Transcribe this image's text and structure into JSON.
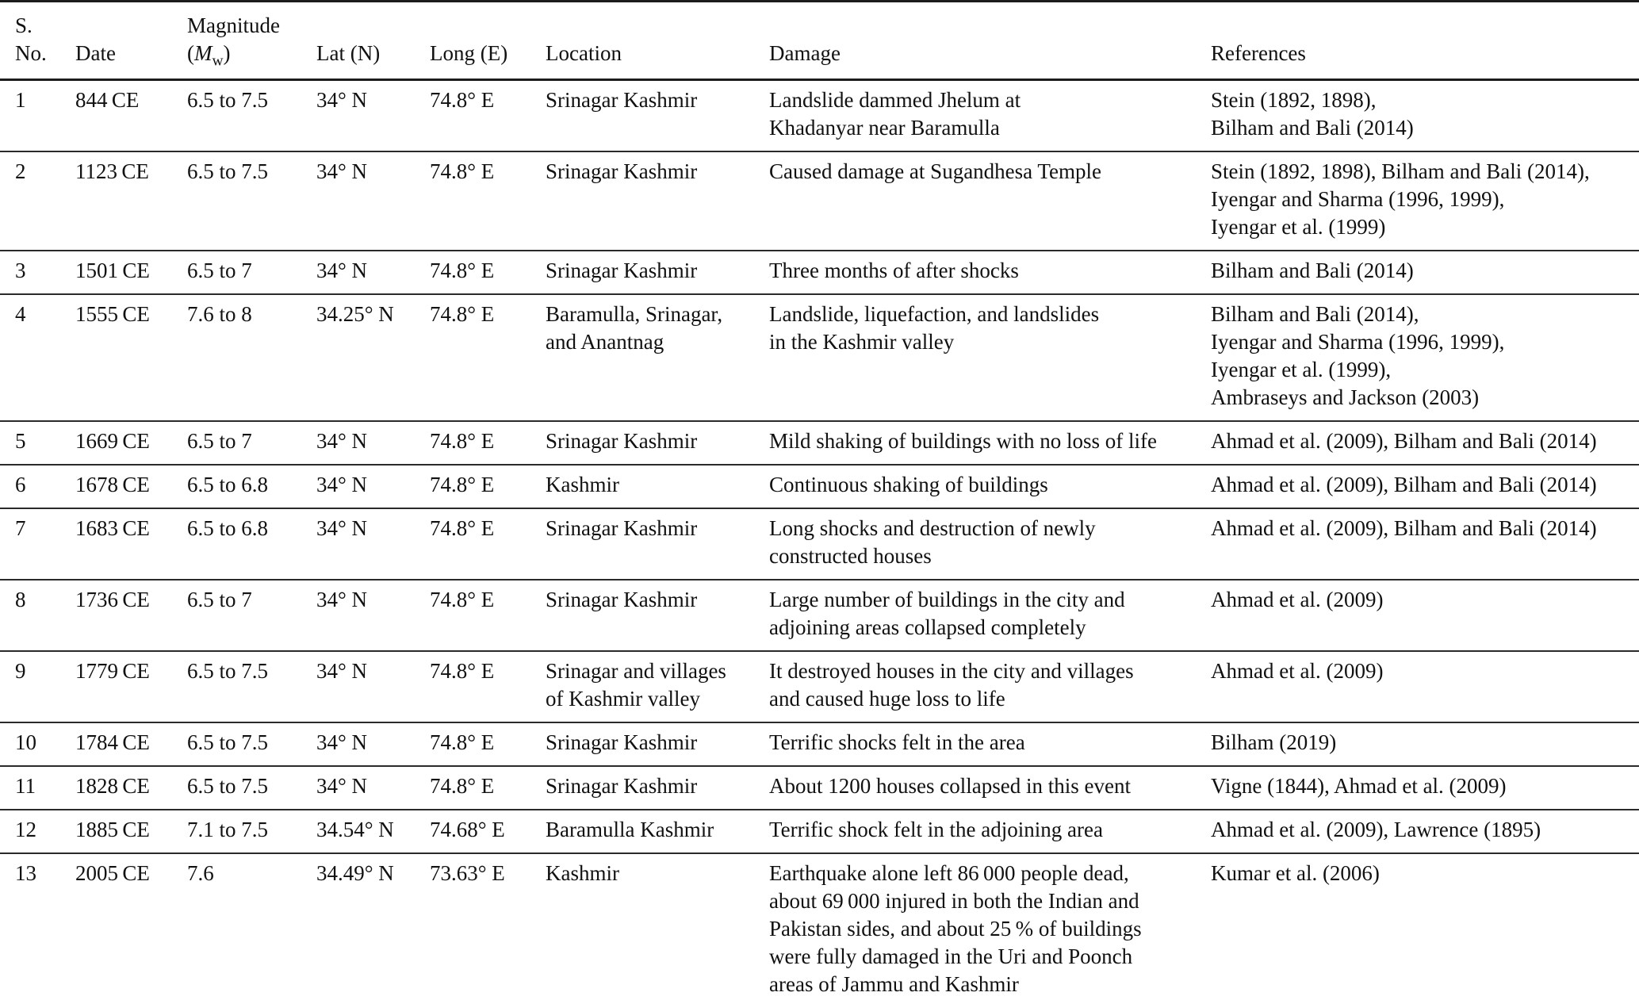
{
  "table": {
    "header": {
      "sno_line1": "S.",
      "sno_line2": "No.",
      "date": "Date",
      "magnitude_line1": "Magnitude",
      "magnitude_open": "(",
      "magnitude_symbol": "M",
      "magnitude_sub": "w",
      "magnitude_close": ")",
      "lat": "Lat (N)",
      "long": "Long (E)",
      "location": "Location",
      "damage": "Damage",
      "references": "References"
    },
    "rows": [
      {
        "sno": "1",
        "date": "844 CE",
        "magnitude": "6.5 to 7.5",
        "lat": "34° N",
        "long": "74.8° E",
        "location": [
          "Srinagar Kashmir"
        ],
        "damage": [
          "Landslide dammed Jhelum at",
          "Khadanyar near Baramulla"
        ],
        "references": [
          "Stein (1892, 1898),",
          "Bilham and Bali (2014)"
        ]
      },
      {
        "sno": "2",
        "date": "1123 CE",
        "magnitude": "6.5 to 7.5",
        "lat": "34° N",
        "long": "74.8° E",
        "location": [
          "Srinagar Kashmir"
        ],
        "damage": [
          "Caused damage at Sugandhesa Temple"
        ],
        "references": [
          "Stein (1892, 1898), Bilham and Bali (2014),",
          "Iyengar and Sharma (1996, 1999),",
          "Iyengar et al. (1999)"
        ]
      },
      {
        "sno": "3",
        "date": "1501 CE",
        "magnitude": "6.5 to 7",
        "lat": "34° N",
        "long": "74.8° E",
        "location": [
          "Srinagar Kashmir"
        ],
        "damage": [
          "Three months of after shocks"
        ],
        "references": [
          "Bilham and Bali (2014)"
        ]
      },
      {
        "sno": "4",
        "date": "1555 CE",
        "magnitude": "7.6 to 8",
        "lat": "34.25° N",
        "long": "74.8° E",
        "location": [
          "Baramulla, Srinagar,",
          "and Anantnag"
        ],
        "damage": [
          "Landslide, liquefaction, and landslides",
          "in the Kashmir valley"
        ],
        "references": [
          "Bilham and Bali (2014),",
          "Iyengar and Sharma (1996, 1999),",
          "Iyengar et al. (1999),",
          "Ambraseys and Jackson (2003)"
        ]
      },
      {
        "sno": "5",
        "date": "1669 CE",
        "magnitude": "6.5 to 7",
        "lat": "34° N",
        "long": "74.8° E",
        "location": [
          "Srinagar Kashmir"
        ],
        "damage": [
          "Mild shaking of buildings with no loss of life"
        ],
        "references": [
          "Ahmad et al. (2009), Bilham and Bali (2014)"
        ]
      },
      {
        "sno": "6",
        "date": "1678 CE",
        "magnitude": "6.5 to 6.8",
        "lat": "34° N",
        "long": "74.8° E",
        "location": [
          "Kashmir"
        ],
        "damage": [
          "Continuous shaking of buildings"
        ],
        "references": [
          "Ahmad et al. (2009), Bilham and Bali (2014)"
        ]
      },
      {
        "sno": "7",
        "date": "1683 CE",
        "magnitude": "6.5 to 6.8",
        "lat": "34° N",
        "long": "74.8° E",
        "location": [
          "Srinagar Kashmir"
        ],
        "damage": [
          "Long shocks and destruction of newly",
          "constructed houses"
        ],
        "references": [
          "Ahmad et al. (2009), Bilham and Bali (2014)"
        ]
      },
      {
        "sno": "8",
        "date": "1736 CE",
        "magnitude": "6.5 to 7",
        "lat": "34° N",
        "long": "74.8° E",
        "location": [
          "Srinagar Kashmir"
        ],
        "damage": [
          "Large number of buildings in the city and",
          "adjoining areas collapsed completely"
        ],
        "references": [
          "Ahmad et al. (2009)"
        ]
      },
      {
        "sno": "9",
        "date": "1779 CE",
        "magnitude": "6.5 to 7.5",
        "lat": "34° N",
        "long": "74.8° E",
        "location": [
          "Srinagar and villages",
          "of Kashmir valley"
        ],
        "damage": [
          "It destroyed houses in the city and villages",
          "and caused huge loss to life"
        ],
        "references": [
          "Ahmad et al. (2009)"
        ]
      },
      {
        "sno": "10",
        "date": "1784 CE",
        "magnitude": "6.5 to 7.5",
        "lat": "34° N",
        "long": "74.8° E",
        "location": [
          "Srinagar Kashmir"
        ],
        "damage": [
          "Terrific shocks felt in the area"
        ],
        "references": [
          "Bilham (2019)"
        ]
      },
      {
        "sno": "11",
        "date": "1828 CE",
        "magnitude": "6.5 to 7.5",
        "lat": "34° N",
        "long": "74.8° E",
        "location": [
          "Srinagar Kashmir"
        ],
        "damage": [
          "About 1200 houses collapsed in this event"
        ],
        "references": [
          "Vigne (1844), Ahmad et al. (2009)"
        ]
      },
      {
        "sno": "12",
        "date": "1885 CE",
        "magnitude": "7.1 to 7.5",
        "lat": "34.54° N",
        "long": "74.68° E",
        "location": [
          "Baramulla Kashmir"
        ],
        "damage": [
          "Terrific shock felt in the adjoining area"
        ],
        "references": [
          "Ahmad et al. (2009), Lawrence (1895)"
        ]
      },
      {
        "sno": "13",
        "date": "2005 CE",
        "magnitude": "7.6",
        "lat": "34.49° N",
        "long": "73.63° E",
        "location": [
          "Kashmir"
        ],
        "damage": [
          "Earthquake alone left 86 000 people dead,",
          "about 69 000 injured in both the Indian and",
          "Pakistan sides, and about 25 % of buildings",
          "were fully damaged in the Uri and Poonch",
          "areas of Jammu and Kashmir"
        ],
        "references": [
          "Kumar et al. (2006)"
        ]
      }
    ]
  }
}
